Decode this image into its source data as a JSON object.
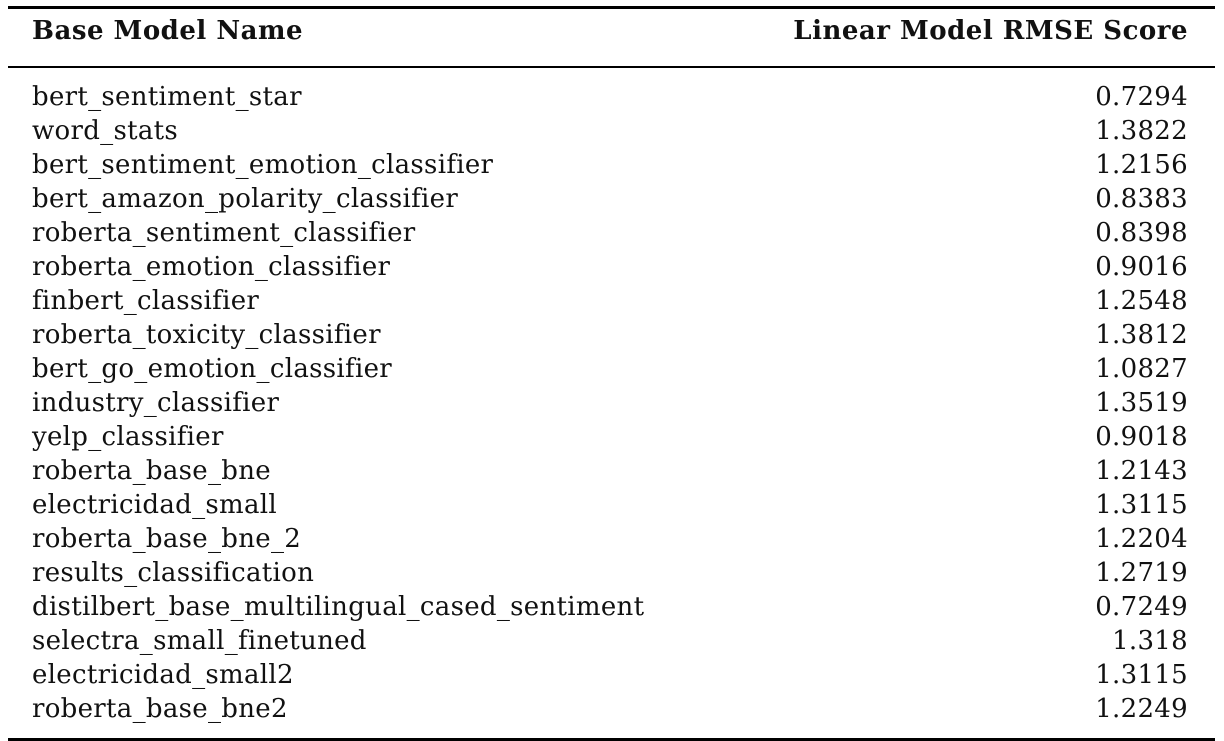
{
  "table": {
    "headers": {
      "name": "Base Model Name",
      "score": "Linear Model RMSE Score"
    },
    "rows": [
      {
        "name": "bert_sentiment_star",
        "score": "0.7294"
      },
      {
        "name": "word_stats",
        "score": "1.3822"
      },
      {
        "name": "bert_sentiment_emotion_classifier",
        "score": "1.2156"
      },
      {
        "name": "bert_amazon_polarity_classifier",
        "score": "0.8383"
      },
      {
        "name": "roberta_sentiment_classifier",
        "score": "0.8398"
      },
      {
        "name": "roberta_emotion_classifier",
        "score": "0.9016"
      },
      {
        "name": "finbert_classifier",
        "score": "1.2548"
      },
      {
        "name": "roberta_toxicity_classifier",
        "score": "1.3812"
      },
      {
        "name": "bert_go_emotion_classifier",
        "score": "1.0827"
      },
      {
        "name": "industry_classifier",
        "score": "1.3519"
      },
      {
        "name": "yelp_classifier",
        "score": "0.9018"
      },
      {
        "name": "roberta_base_bne",
        "score": "1.2143"
      },
      {
        "name": "electricidad_small",
        "score": "1.3115"
      },
      {
        "name": "roberta_base_bne_2",
        "score": "1.2204"
      },
      {
        "name": "results_classification",
        "score": "1.2719"
      },
      {
        "name": "distilbert_base_multilingual_cased_sentiment",
        "score": "0.7249"
      },
      {
        "name": "selectra_small_finetuned",
        "score": "1.318"
      },
      {
        "name": "electricidad_small2",
        "score": "1.3115"
      },
      {
        "name": "roberta_base_bne2",
        "score": "1.2249"
      }
    ]
  }
}
